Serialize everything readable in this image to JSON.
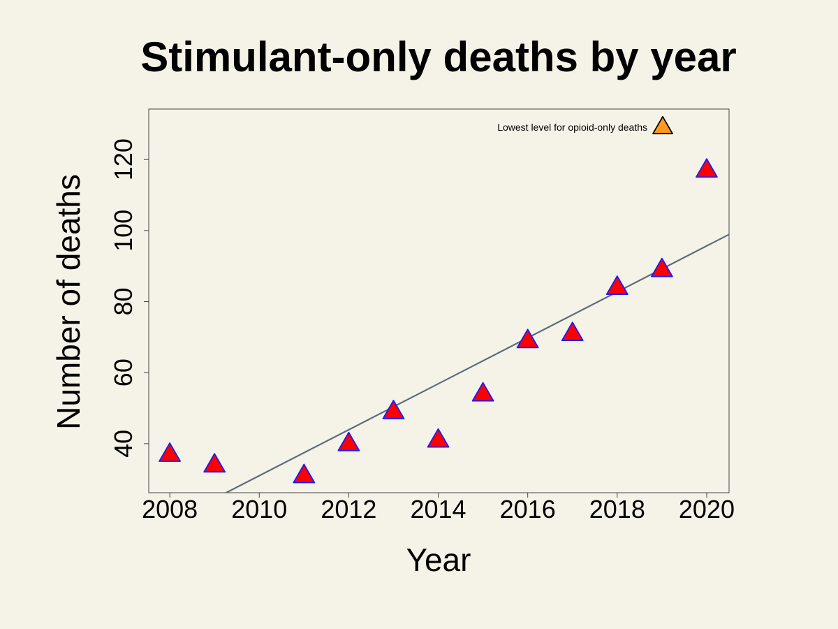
{
  "chart_data": {
    "type": "scatter",
    "title": "Stimulant-only deaths by year",
    "xlabel": "Year",
    "ylabel": "Number of deaths",
    "xlim": [
      2007.53,
      2020.5
    ],
    "ylim": [
      26.2,
      134.2
    ],
    "x_ticks": [
      2008,
      2010,
      2012,
      2014,
      2016,
      2018,
      2020
    ],
    "y_ticks": [
      40,
      60,
      80,
      100,
      120
    ],
    "grid": false,
    "legend_position": "top-right",
    "series": [
      {
        "marker": "triangle",
        "fill": "#ff0000",
        "stroke": "#1a1aff",
        "points": [
          {
            "x": 2008,
            "y": 37
          },
          {
            "x": 2009,
            "y": 34
          },
          {
            "x": 2011,
            "y": 31
          },
          {
            "x": 2012,
            "y": 40
          },
          {
            "x": 2013,
            "y": 49
          },
          {
            "x": 2014,
            "y": 41
          },
          {
            "x": 2015,
            "y": 54
          },
          {
            "x": 2016,
            "y": 69
          },
          {
            "x": 2017,
            "y": 71
          },
          {
            "x": 2018,
            "y": 84
          },
          {
            "x": 2019,
            "y": 89
          },
          {
            "x": 2020,
            "y": 117
          }
        ]
      }
    ],
    "trend_line": {
      "color": "#5f6b78",
      "start": {
        "x": 2009.26,
        "y": 26.2
      },
      "end": {
        "x": 2020.5,
        "y": 98.9
      }
    },
    "legend": {
      "label": "Lowest level for opioid-only deaths",
      "marker": "triangle",
      "fill": "#ff9a1f",
      "stroke": "#000000"
    }
  }
}
